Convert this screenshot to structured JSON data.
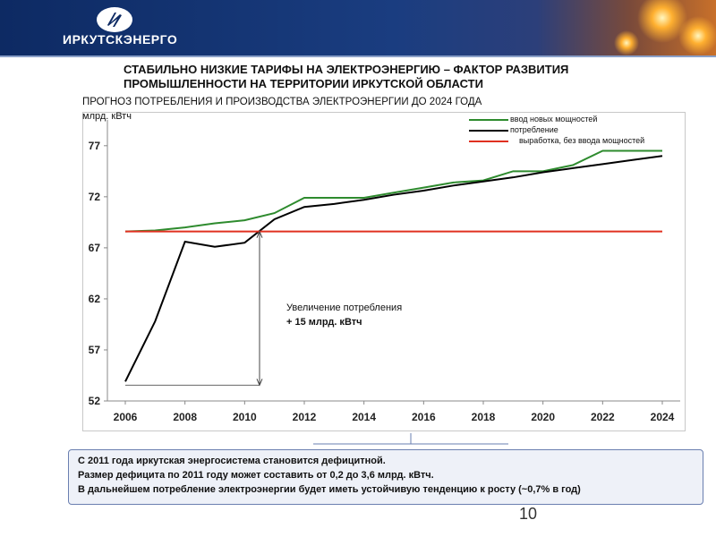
{
  "header": {
    "logo_text": "ИРКУТСКЭНЕРГО",
    "colors": {
      "bg": "#0d2a63",
      "accent": "#c8702a"
    }
  },
  "title": {
    "line1": "СТАБИЛЬНО НИЗКИЕ ТАРИФЫ НА ЭЛЕКТРОЭНЕРГИЮ – ФАКТОР РАЗВИТИЯ",
    "line2": "ПРОМЫШЛЕННОСТИ НА ТЕРРИТОРИИ ИРКУТСКОЙ ОБЛАСТИ"
  },
  "subtitle": "ПРОГНОЗ ПОТРЕБЛЕНИЯ И ПРОИЗВОДСТВА ЭЛЕКТРОЭНЕРГИИ ДО 2024 ГОДА",
  "annotation": {
    "line1": "Увеличение потребления",
    "line2": "+ 15 млрд. кВтч"
  },
  "info": {
    "line1": "С 2011 года иркутская энергосистема становится дефицитной.",
    "line2": "Размер дефицита по 2011 году может составить от 0,2 до 3,6 млрд. кВтч.",
    "line3": "В дальнейшем потребление электроэнергии будет иметь устойчивую тенденцию к росту (~0,7% в год)"
  },
  "page_number": "10",
  "chart_data": {
    "type": "line",
    "ylabel": "млрд. кВтч",
    "xlim": [
      2006,
      2024
    ],
    "ylim": [
      52,
      79
    ],
    "x_ticks": [
      2006,
      2008,
      2010,
      2012,
      2014,
      2016,
      2018,
      2020,
      2022,
      2024
    ],
    "y_ticks": [
      52,
      57,
      62,
      67,
      72,
      77
    ],
    "grid": false,
    "legend_position": "top-right",
    "series": [
      {
        "name": "ввод новых мощностей",
        "color": "#2e8b2e",
        "x": [
          2006,
          2007,
          2008,
          2009,
          2010,
          2011,
          2012,
          2013,
          2014,
          2015,
          2016,
          2017,
          2018,
          2019,
          2020,
          2021,
          2022,
          2023,
          2024
        ],
        "values": [
          68.6,
          68.7,
          69.0,
          69.4,
          69.7,
          70.4,
          71.9,
          71.9,
          71.9,
          72.4,
          72.9,
          73.4,
          73.6,
          74.5,
          74.5,
          75.1,
          76.5,
          76.5,
          76.5
        ]
      },
      {
        "name": "потребление",
        "color": "#000000",
        "x": [
          2006,
          2007,
          2008,
          2009,
          2010,
          2011,
          2012,
          2013,
          2014,
          2015,
          2016,
          2017,
          2018,
          2019,
          2020,
          2021,
          2022,
          2023,
          2024
        ],
        "values": [
          53.9,
          59.8,
          67.6,
          67.1,
          67.5,
          69.8,
          71.0,
          71.3,
          71.7,
          72.2,
          72.6,
          73.1,
          73.5,
          73.9,
          74.4,
          74.8,
          75.2,
          75.6,
          76.0
        ]
      },
      {
        "name": "выработка, без ввода мощностей",
        "color": "#e03020",
        "x": [
          2006,
          2024
        ],
        "values": [
          68.6,
          68.6
        ]
      }
    ]
  }
}
